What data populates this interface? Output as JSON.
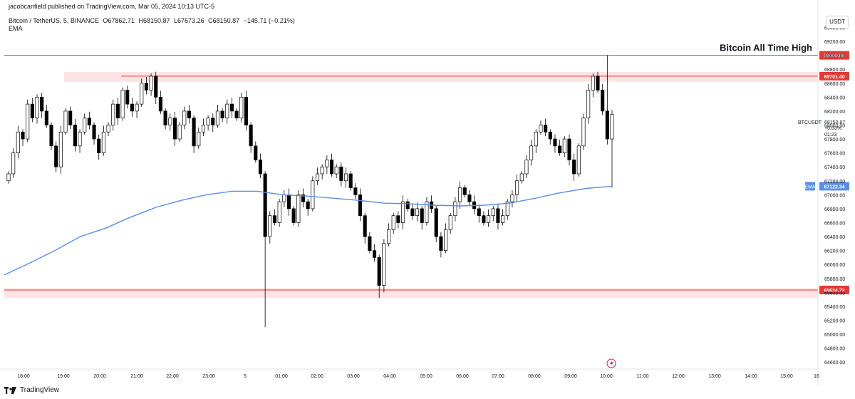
{
  "header": {
    "published": "jacobcanfield published on TradingView.com, Mar 05, 2024 10:13 UTC-5"
  },
  "symbol": {
    "name": "Bitcoin / TetherUS, 5, BINANCE",
    "open": "O67862.71",
    "high": "H68150.87",
    "low": "L67673.26",
    "close": "C68150.87",
    "change": "−145.71 (−0.21%)",
    "indicator": "EMA"
  },
  "price_scale": {
    "unit": "USDT"
  },
  "last_price_panel": {
    "ticker": "BTCUSDT",
    "price": "68150.87",
    "change": "+0.83%",
    "countdown": "01:23"
  },
  "annotation": {
    "text": "Bitcoin All Time High"
  },
  "footer": {
    "brand": "TradingView"
  },
  "colors": {
    "up": "#ffffff",
    "down": "#000000",
    "ema": "#5b8de8",
    "level": "#e53935",
    "zone": "#fde4e4"
  },
  "chart_data": {
    "type": "candlestick",
    "yunit": "USDT",
    "ylim": [
      64500,
      69650
    ],
    "y_ticks": [
      "64600.00",
      "64800.00",
      "65000.00",
      "65200.00",
      "65400.00",
      "65600.00",
      "65800.00",
      "66000.00",
      "66200.00",
      "66400.00",
      "66600.00",
      "66800.00",
      "67000.00",
      "67200.00",
      "67400.00",
      "67600.00",
      "67800.00",
      "68000.00",
      "68200.00",
      "68400.00",
      "68600.00",
      "68800.00",
      "69000.00",
      "69200.00",
      "69400.00"
    ],
    "x_ticks": [
      "18:00",
      "19:00",
      "20:00",
      "21:00",
      "22:00",
      "23:00",
      "5",
      "01:00",
      "02:00",
      "03:00",
      "04:00",
      "05:00",
      "06:00",
      "07:00",
      "08:00",
      "09:00",
      "10:00",
      "11:00",
      "12:00",
      "13:00",
      "14:00",
      "15:00",
      "16"
    ],
    "levels": [
      {
        "label": "69000.00",
        "value": 69000
      },
      {
        "label": "68701.40",
        "value": 68701.4
      },
      {
        "label": "65634.73",
        "value": 65634.73
      }
    ],
    "ema_label": {
      "label": "EMA",
      "value": "67122.34"
    },
    "zones": [
      [
        68620,
        68760
      ],
      [
        65520,
        65660
      ]
    ],
    "candle_closes": [
      67300,
      67600,
      67900,
      67800,
      68300,
      68100,
      68400,
      68200,
      68000,
      67700,
      67400,
      67900,
      68200,
      68000,
      67700,
      67900,
      68100,
      68000,
      67800,
      67600,
      67900,
      68000,
      68300,
      68100,
      68500,
      68300,
      68200,
      68300,
      68600,
      68500,
      68700,
      68400,
      68200,
      68000,
      68100,
      67800,
      68000,
      68200,
      68100,
      67700,
      67900,
      68000,
      68100,
      68000,
      68200,
      68100,
      68300,
      68200,
      68100,
      68400,
      68000,
      67700,
      67500,
      67300,
      66400,
      66700,
      66600,
      66900,
      67000,
      66800,
      66600,
      67000,
      66900,
      66800,
      67200,
      67300,
      67400,
      67500,
      67300,
      67400,
      67200,
      67300,
      67100,
      67000,
      66700,
      66400,
      66200,
      66100,
      65700,
      66300,
      66500,
      66700,
      66600,
      66900,
      66800,
      66700,
      66800,
      66600,
      66900,
      66800,
      66400,
      66200,
      66500,
      66700,
      66900,
      67100,
      67000,
      66900,
      66800,
      66700,
      66600,
      66700,
      66800,
      66600,
      66700,
      66900,
      67000,
      67200,
      67300,
      67500,
      67700,
      67900,
      68000,
      67900,
      67800,
      67700,
      67600,
      67800,
      67500,
      67300,
      67700,
      68100,
      68500,
      68700,
      68500,
      68200,
      67800,
      68150.87
    ],
    "ema_values": [
      65850,
      66020,
      66200,
      66400,
      66520,
      66680,
      66820,
      66920,
      67000,
      67050,
      67050,
      67000,
      66980,
      66950,
      66920,
      66880,
      66870,
      66850,
      66840,
      66850,
      66880,
      66950,
      67030,
      67090,
      67122.34
    ]
  }
}
